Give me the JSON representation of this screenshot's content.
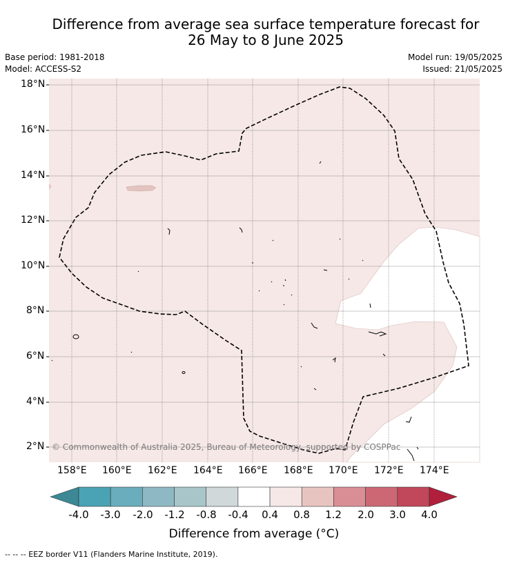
{
  "title_line1": "Difference from average sea surface temperature forecast for",
  "title_line2": "26 May to 8 June 2025",
  "base_period": "Base period: 1981-2018",
  "model": "Model: ACCESS-S2",
  "model_run": "Model run: 19/05/2025",
  "issued": "Issued: 21/05/2025",
  "lat_labels": [
    "18°N",
    "16°N",
    "14°N",
    "12°N",
    "10°N",
    "8°N",
    "6°N",
    "4°N",
    "2°N"
  ],
  "lon_labels": [
    "158°E",
    "160°E",
    "162°E",
    "164°E",
    "166°E",
    "168°E",
    "170°E",
    "172°E",
    "174°E"
  ],
  "copyright": "© Commonwealth of Australia 2025, Bureau of Meteorology, supported by COSPPac",
  "colorbar": {
    "ticks": [
      "-4.0",
      "-3.0",
      "-2.0",
      "-1.2",
      "-0.8",
      "-0.4",
      "0.4",
      "0.8",
      "1.2",
      "2.0",
      "3.0",
      "4.0"
    ],
    "colors": [
      "#3c8895",
      "#4aa3b4",
      "#6aadbc",
      "#8eb9c4",
      "#a8c6ca",
      "#d0d8da",
      "#ffffff",
      "#f5e8e6",
      "#e8c4c0",
      "#d98e95",
      "#cb6874",
      "#c0485a",
      "#b0203c"
    ],
    "label": "Difference from average (°C)"
  },
  "footnote": "--  --  -- EEZ border V11 (Flanders Marine Institute, 2019)."
}
